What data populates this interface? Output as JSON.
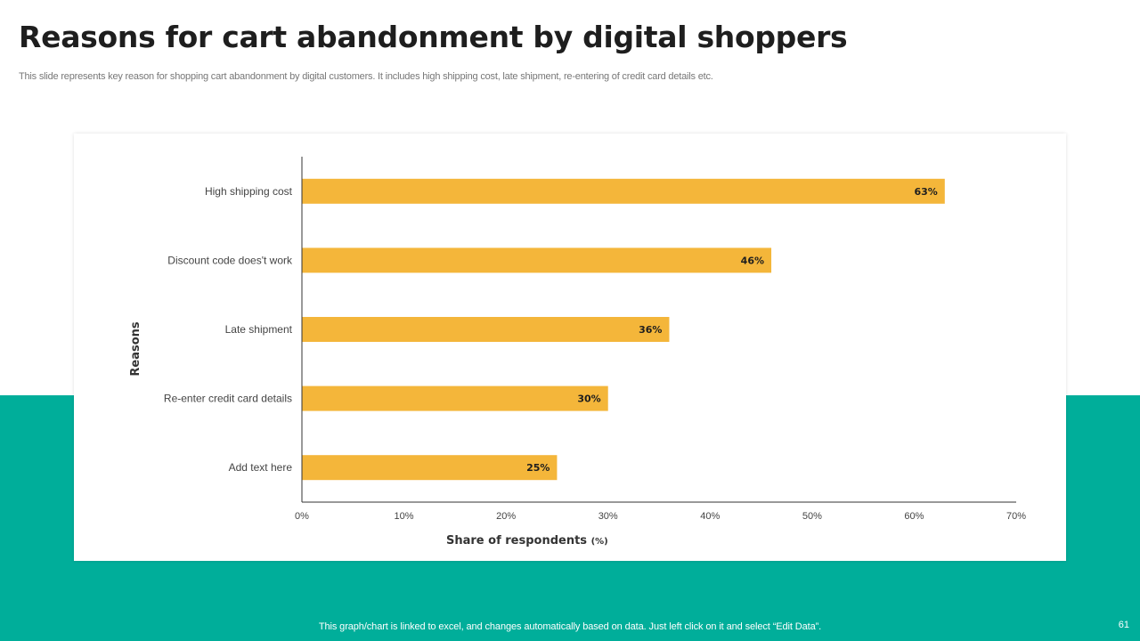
{
  "slide": {
    "title": "Reasons for cart abandonment by digital shoppers",
    "subtitle": "This slide represents  key reason for shopping cart abandonment by digital customers. It includes high shipping cost, late shipment, re-entering of credit card details etc.",
    "footnote": "This graph/chart is linked to excel,  and changes automatically based on data. Just left click on it and select “Edit Data”.",
    "page_number": "61",
    "colors": {
      "accent": "#00ae9a",
      "bar": "#f4b63a",
      "title": "#1e1e1e"
    }
  },
  "chart_data": {
    "type": "bar",
    "orientation": "horizontal",
    "categories": [
      "High shipping cost",
      "Discount code does't work",
      "Late shipment",
      "Re-enter credit card details",
      "Add text here"
    ],
    "values": [
      63,
      46,
      36,
      30,
      25
    ],
    "data_labels": [
      "63%",
      "46%",
      "36%",
      "30%",
      "25%"
    ],
    "xlim": [
      0,
      70
    ],
    "xticks": [
      0,
      10,
      20,
      30,
      40,
      50,
      60,
      70
    ],
    "xtick_labels": [
      "0%",
      "10%",
      "20%",
      "30%",
      "40%",
      "50%",
      "60%",
      "70%"
    ],
    "xlabel": "Share of respondents",
    "xlabel_unit": "(%)",
    "ylabel": "Reasons",
    "grid": false
  }
}
